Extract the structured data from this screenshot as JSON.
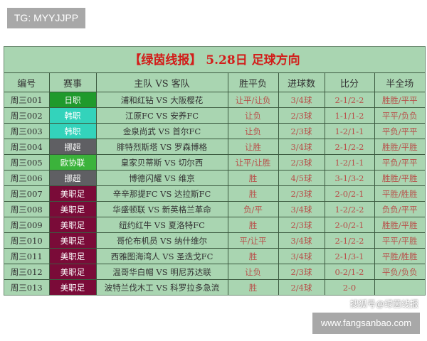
{
  "badges": {
    "top_left": "TG: MYYJJPP",
    "bottom_right": "www.fangsanbao.com"
  },
  "watermark": "搜狐号@绿茵线报",
  "table": {
    "title": "【绿茵线报】 5.28日 足球方向",
    "headers": [
      "编号",
      "赛事",
      "主队 VS 客队",
      "胜平负",
      "进球数",
      "比分",
      "半全场"
    ],
    "league_colors": {
      "日职": "#1f9a2c",
      "韩职": "#33d3bb",
      "挪超": "#5f5f63",
      "欧协联": "#3bb33b",
      "美职足": "#7a0b38"
    },
    "rows": [
      {
        "id": "周三001",
        "league": "日职",
        "match": "浦和红钻 VS 大阪樱花",
        "wdl": "让平/让负",
        "goals": "3/4球",
        "score": "2-1/2-2",
        "htft": "胜胜/平平"
      },
      {
        "id": "周三002",
        "league": "韩职",
        "match": "江原FC VS 安养FC",
        "wdl": "让负",
        "goals": "2/3球",
        "score": "1-1/1-2",
        "htft": "平平/负负"
      },
      {
        "id": "周三003",
        "league": "韩职",
        "match": "金泉尚武 VS 首尔FC",
        "wdl": "让负",
        "goals": "2/3球",
        "score": "1-2/1-1",
        "htft": "平负/平平"
      },
      {
        "id": "周三004",
        "league": "挪超",
        "match": "腓特烈斯塔 VS 罗森博格",
        "wdl": "让胜",
        "goals": "3/4球",
        "score": "2-1/2-2",
        "htft": "胜胜/平胜"
      },
      {
        "id": "周三005",
        "league": "欧协联",
        "match": "皇家贝蒂斯 VS 切尔西",
        "wdl": "让平/让胜",
        "goals": "2/3球",
        "score": "1-2/1-1",
        "htft": "平负/平平"
      },
      {
        "id": "周三006",
        "league": "挪超",
        "match": "博德闪耀 VS 维京",
        "wdl": "胜",
        "goals": "4/5球",
        "score": "3-1/3-2",
        "htft": "胜胜/平胜"
      },
      {
        "id": "周三007",
        "league": "美职足",
        "match": "辛辛那提FC VS 达拉斯FC",
        "wdl": "胜",
        "goals": "2/3球",
        "score": "2-0/2-1",
        "htft": "平胜/胜胜"
      },
      {
        "id": "周三008",
        "league": "美职足",
        "match": "华盛顿联 VS 新英格兰革命",
        "wdl": "负/平",
        "goals": "3/4球",
        "score": "1-2/2-2",
        "htft": "负负/平平"
      },
      {
        "id": "周三009",
        "league": "美职足",
        "match": "纽约红牛 VS 夏洛特FC",
        "wdl": "胜",
        "goals": "2/3球",
        "score": "2-0/2-1",
        "htft": "胜胜/平胜"
      },
      {
        "id": "周三010",
        "league": "美职足",
        "match": "哥伦布机员 VS 纳什维尔",
        "wdl": "平/让平",
        "goals": "3/4球",
        "score": "2-1/2-2",
        "htft": "平平/平胜"
      },
      {
        "id": "周三011",
        "league": "美职足",
        "match": "西雅图海湾人 VS 圣迭戈FC",
        "wdl": "胜",
        "goals": "3/4球",
        "score": "2-1/3-1",
        "htft": "平胜/胜胜"
      },
      {
        "id": "周三012",
        "league": "美职足",
        "match": "温哥华白帽 VS 明尼苏达联",
        "wdl": "让负",
        "goals": "2/3球",
        "score": "0-2/1-2",
        "htft": "平负/负负"
      },
      {
        "id": "周三013",
        "league": "美职足",
        "match": "波特兰伐木工 VS 科罗拉多急流",
        "wdl": "胜",
        "goals": "2/4球",
        "score": "2-0",
        "htft": ""
      }
    ]
  }
}
